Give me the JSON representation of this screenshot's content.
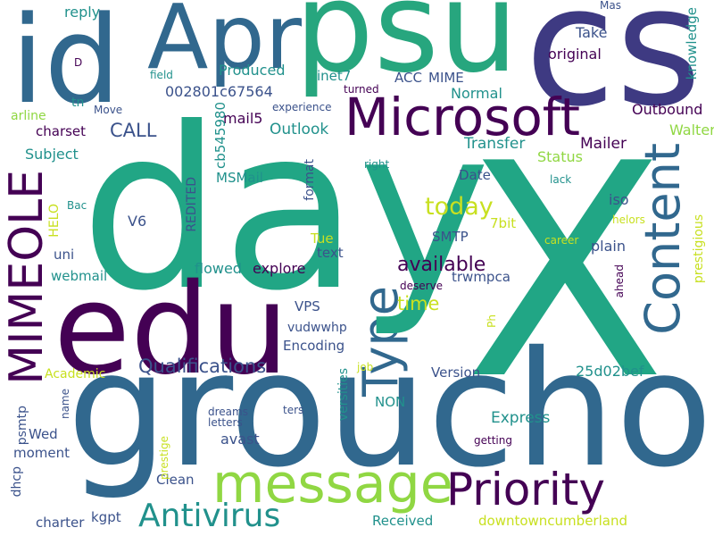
{
  "palette": {
    "deep_purple": "#440154",
    "indigo": "#3b528b",
    "blue": "#31688e",
    "teal": "#21918c",
    "green": "#35b779",
    "lime": "#90d743",
    "yellow": "#c8e020"
  },
  "words": [
    "X",
    "groucho",
    "day",
    "cs",
    "edu",
    "psu",
    "id",
    "Apr",
    "Microsoft",
    "message",
    "Priority",
    "MIMEOLE",
    "Content",
    "Type",
    "Antivirus",
    "today",
    "Qualifications",
    "available",
    "time",
    "CALL",
    "Outlook",
    "mail5",
    "Mailer",
    "Outbound",
    "Transfer",
    "Status",
    "Walter",
    "Subject",
    "charset",
    "arline",
    "Produced",
    "original",
    "Take",
    "reply",
    "knowledge",
    "Normal",
    "inet7",
    "ACC",
    "MIME",
    "002801c67564",
    "cb545980",
    "MSMail",
    "REDITED",
    "format",
    "HELO",
    "V6",
    "uni",
    "webmail",
    "flowed",
    "explore",
    "Tue",
    "text",
    "SMTP",
    "VPS",
    "Encoding",
    "vudwwhp",
    "trwmpca",
    "Date",
    "7bit",
    "iso",
    "plain",
    "prestigious",
    "25d02bef",
    "Version",
    "Academic",
    "NON",
    "Express",
    "Wed",
    "moment",
    "dhcp",
    "charter",
    "kgpt",
    "avast",
    "Clean",
    "Received",
    "downtowncumberland",
    "versities",
    "psmtp",
    "letters",
    "dreams",
    "ters",
    "getting",
    "prestige",
    "name",
    "job",
    "Ph",
    "deserve",
    "ahead",
    "career",
    "helors",
    "lack",
    "right",
    "Bac",
    "field",
    "turned",
    "experience",
    "Move",
    "tn",
    "D",
    "Mas"
  ]
}
